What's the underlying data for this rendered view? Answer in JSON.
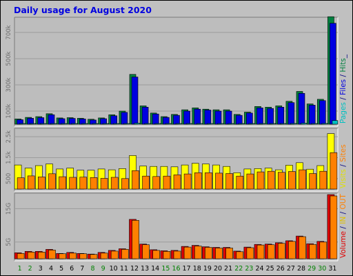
{
  "chart_data": {
    "type": "bar",
    "title": "Daily usage for August 2020",
    "categories": [
      "1",
      "2",
      "3",
      "4",
      "5",
      "6",
      "7",
      "8",
      "9",
      "10",
      "11",
      "12",
      "13",
      "14",
      "15",
      "16",
      "17",
      "18",
      "19",
      "20",
      "21",
      "22",
      "23",
      "24",
      "25",
      "26",
      "27",
      "28",
      "29",
      "30",
      "31"
    ],
    "weekend_days": [
      "1",
      "2",
      "8",
      "9",
      "15",
      "16",
      "22",
      "23",
      "29",
      "30"
    ],
    "panels": [
      {
        "id": "hits",
        "yticks": [
          {
            "label": "100k",
            "value": 100000
          },
          {
            "label": "300k",
            "value": 300000
          },
          {
            "label": "500k",
            "value": 500000
          },
          {
            "label": "700k",
            "value": 700000
          }
        ],
        "ymax": 800000,
        "side_label": [
          {
            "text": "Pages",
            "color": "#00c0c0"
          },
          {
            "text": " / ",
            "color": "#000080"
          },
          {
            "text": "Files",
            "color": "#0000e0"
          },
          {
            "text": " / ",
            "color": "#000080"
          },
          {
            "text": "Hits",
            "color": "#008040"
          },
          {
            "text": "_",
            "color": "#000080"
          }
        ],
        "series": [
          {
            "name": "Hits",
            "color": "#008040",
            "values": [
              40000,
              52000,
              58000,
              80000,
              48000,
              50000,
              45000,
              38000,
              48000,
              72000,
              100000,
              380000,
              140000,
              85000,
              58000,
              75000,
              110000,
              125000,
              115000,
              110000,
              110000,
              75000,
              92000,
              135000,
              130000,
              140000,
              175000,
              250000,
              155000,
              190000,
              820000
            ]
          },
          {
            "name": "Files",
            "color": "#0000e0",
            "values": [
              34000,
              45000,
              50000,
              72000,
              42000,
              44000,
              40000,
              32000,
              42000,
              64000,
              90000,
              360000,
              130000,
              78000,
              52000,
              68000,
              100000,
              115000,
              108000,
              100000,
              100000,
              68000,
              85000,
              125000,
              120000,
              130000,
              165000,
              235000,
              145000,
              180000,
              770000
            ]
          },
          {
            "name": "Pages",
            "color": "#00c0c0",
            "values": [
              2000,
              2500,
              2500,
              3000,
              2000,
              2500,
              2000,
              2000,
              2500,
              3000,
              3500,
              8000,
              4000,
              3500,
              2500,
              3000,
              4000,
              4500,
              4000,
              4000,
              4000,
              3000,
              3500,
              4500,
              4500,
              5000,
              6000,
              8000,
              5000,
              6000,
              28000
            ]
          }
        ]
      },
      {
        "id": "visits",
        "yticks": [
          {
            "label": "500",
            "value": 500
          },
          {
            "label": "1.5k",
            "value": 1500
          },
          {
            "label": "2.5k",
            "value": 2500
          }
        ],
        "ymax": 2800,
        "side_label": [
          {
            "text": "Visits",
            "color": "#e0e000"
          },
          {
            "text": " / ",
            "color": "#000080"
          },
          {
            "text": "Sites",
            "color": "#ff8000"
          }
        ],
        "series": [
          {
            "name": "Visits",
            "color": "#ffff00",
            "values": [
              1150,
              1000,
              1120,
              1200,
              960,
              1000,
              900,
              900,
              960,
              920,
              980,
              1600,
              1100,
              1080,
              1080,
              1060,
              1150,
              1230,
              1200,
              1150,
              1080,
              780,
              960,
              980,
              1000,
              920,
              1140,
              1260,
              950,
              1120,
              2650
            ]
          },
          {
            "name": "Sites",
            "color": "#ff8000",
            "values": [
              540,
              630,
              580,
              730,
              590,
              560,
              570,
              550,
              510,
              560,
              500,
              880,
              620,
              600,
              620,
              680,
              720,
              780,
              780,
              760,
              740,
              620,
              720,
              820,
              850,
              800,
              840,
              920,
              740,
              850,
              1740
            ]
          }
        ]
      },
      {
        "id": "volume",
        "yticks": [
          {
            "label": "5G",
            "value": 5
          },
          {
            "label": "15G",
            "value": 15
          }
        ],
        "ymax": 19,
        "side_label": [
          {
            "text": "Volume",
            "color": "#e00000"
          },
          {
            "text": " / ",
            "color": "#000080"
          },
          {
            "text": "IN",
            "color": "#e0c000"
          },
          {
            "text": " / ",
            "color": "#000080"
          },
          {
            "text": "OUT",
            "color": "#ff8000"
          }
        ],
        "series": [
          {
            "name": "Volume",
            "color": "#e00000",
            "values": [
              1.8,
              2.2,
              2.2,
              2.8,
              1.6,
              1.9,
              1.6,
              1.4,
              1.9,
              2.5,
              3.0,
              11.8,
              4.4,
              2.7,
              2.4,
              2.5,
              3.7,
              4.0,
              3.6,
              3.4,
              3.4,
              2.3,
              3.5,
              4.3,
              4.4,
              4.8,
              5.4,
              6.8,
              4.5,
              5.2,
              19.2
            ]
          },
          {
            "name": "OUT",
            "color": "#ff8000",
            "values": [
              1.6,
              2.0,
              2.0,
              2.6,
              1.5,
              1.7,
              1.5,
              1.3,
              1.7,
              2.3,
              2.8,
              11.5,
              4.2,
              2.5,
              2.2,
              2.3,
              3.5,
              3.8,
              3.4,
              3.2,
              3.2,
              2.1,
              3.3,
              4.1,
              4.2,
              4.6,
              5.2,
              6.6,
              4.3,
              5.0,
              18.8
            ]
          }
        ]
      }
    ]
  }
}
